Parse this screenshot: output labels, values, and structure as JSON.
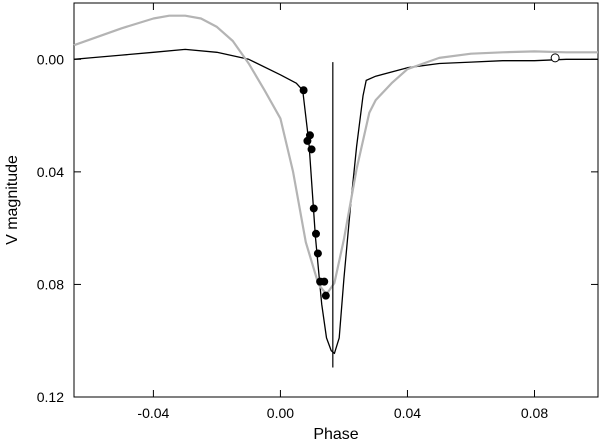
{
  "chart_data": {
    "type": "line",
    "title": "",
    "xlabel": "Phase",
    "ylabel": "V magnitude",
    "xlim": [
      -0.065,
      0.1
    ],
    "ylim": [
      0.12,
      -0.02
    ],
    "y_inverted": true,
    "grid": false,
    "x_ticks": [
      {
        "value": -0.04,
        "label": "-0.04"
      },
      {
        "value": 0.0,
        "label": "0.00"
      },
      {
        "value": 0.04,
        "label": "0.04"
      },
      {
        "value": 0.08,
        "label": "0.08"
      }
    ],
    "y_ticks": [
      {
        "value": 0.0,
        "label": "0.00"
      },
      {
        "value": 0.04,
        "label": "0.04"
      },
      {
        "value": 0.08,
        "label": "0.08"
      },
      {
        "value": 0.12,
        "label": "0.12"
      }
    ],
    "vertical_line": {
      "x": 0.0165,
      "y_from": 0.001,
      "y_to": 0.1095,
      "color": "#000000"
    },
    "series": [
      {
        "kind": "line",
        "color": "#000000",
        "x": [
          -0.065,
          -0.06,
          -0.05,
          -0.04,
          -0.03,
          -0.02,
          -0.01,
          0.0,
          0.005,
          0.007,
          0.009,
          0.011,
          0.013,
          0.0145,
          0.016,
          0.017,
          0.0185,
          0.02,
          0.022,
          0.024,
          0.026,
          0.027,
          0.03,
          0.04,
          0.05,
          0.06,
          0.07,
          0.08,
          0.09,
          0.1
        ],
        "y": [
          0.0,
          -0.0005,
          -0.0015,
          -0.0025,
          -0.0035,
          -0.0025,
          0.0,
          0.0055,
          0.0085,
          0.011,
          0.03,
          0.063,
          0.087,
          0.099,
          0.1035,
          0.1045,
          0.099,
          0.078,
          0.053,
          0.031,
          0.013,
          0.0075,
          0.006,
          0.003,
          0.0015,
          0.001,
          0.0005,
          0.0005,
          0.0,
          0.0
        ]
      },
      {
        "kind": "line",
        "color": "#b4b4b4",
        "x": [
          -0.065,
          -0.06,
          -0.05,
          -0.04,
          -0.035,
          -0.03,
          -0.025,
          -0.02,
          -0.015,
          -0.01,
          -0.005,
          0.0,
          0.004,
          0.008,
          0.012,
          0.0145,
          0.017,
          0.02,
          0.024,
          0.028,
          0.03,
          0.035,
          0.04,
          0.05,
          0.06,
          0.07,
          0.08,
          0.09,
          0.1
        ],
        "y": [
          -0.005,
          -0.007,
          -0.011,
          -0.0145,
          -0.0155,
          -0.0155,
          -0.0145,
          -0.0115,
          -0.0065,
          0.0015,
          0.011,
          0.021,
          0.04,
          0.065,
          0.08,
          0.0835,
          0.0795,
          0.064,
          0.039,
          0.019,
          0.0145,
          0.0085,
          0.0035,
          -0.0005,
          -0.002,
          -0.0025,
          -0.0028,
          -0.0025,
          -0.0025
        ]
      },
      {
        "kind": "points",
        "marker": "filled-circle",
        "color": "#000000",
        "x": [
          0.0073,
          0.0085,
          0.0093,
          0.0098,
          0.0105,
          0.0112,
          0.0118,
          0.0125,
          0.0138,
          0.0143
        ],
        "y": [
          0.011,
          0.029,
          0.027,
          0.032,
          0.053,
          0.062,
          0.069,
          0.079,
          0.079,
          0.084
        ]
      },
      {
        "kind": "points",
        "marker": "open-circle",
        "color": "#000000",
        "x": [
          0.0865
        ],
        "y": [
          -0.0005
        ]
      }
    ]
  }
}
